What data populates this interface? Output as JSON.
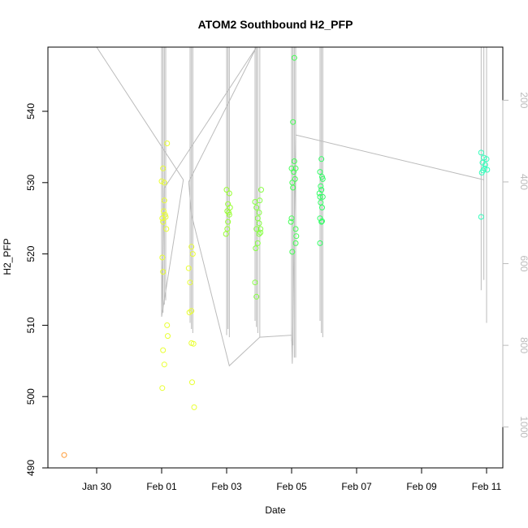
{
  "chart_data": {
    "type": "scatter",
    "title": "ATOM2 Southbound H2_PFP",
    "xlabel": "Date",
    "ylabel": "H2_PFP",
    "grid": false,
    "xlim": [
      "2016-01-28T12:00",
      "2016-02-11T12:00"
    ],
    "ylim": [
      490,
      549
    ],
    "x_ticks": [
      {
        "label": "Jan 30",
        "date": "2016-01-30"
      },
      {
        "label": "Feb 01",
        "date": "2016-02-01"
      },
      {
        "label": "Feb 03",
        "date": "2016-02-03"
      },
      {
        "label": "Feb 05",
        "date": "2016-02-05"
      },
      {
        "label": "Feb 07",
        "date": "2016-02-07"
      },
      {
        "label": "Feb 09",
        "date": "2016-02-09"
      },
      {
        "label": "Feb 11",
        "date": "2016-02-11"
      }
    ],
    "y_ticks": [
      490,
      500,
      510,
      520,
      530,
      540
    ],
    "secondary_axis": {
      "ticks": [
        200,
        400,
        600,
        800,
        1000
      ],
      "range": [
        70,
        1100
      ],
      "inverted": true,
      "color": "#bbbbbb"
    },
    "colors": {
      "jan29": "#ff9933",
      "feb01": "#e9ff33",
      "feb03": "#99ff33",
      "feb04": "#88ff44",
      "feb05": "#44ff55",
      "feb06": "#33ff66",
      "feb10": "#33ffbb",
      "profile_line": "#bbbbbb"
    },
    "series": [
      {
        "color": "#ff9933",
        "points": [
          [
            "2016-01-29T00:00",
            491.8
          ]
        ]
      },
      {
        "color": "#e9ff33",
        "points": [
          [
            "2016-02-01T00:00",
            530.2
          ],
          [
            "2016-02-01T01:00",
            532.0
          ],
          [
            "2016-02-01T02:00",
            527.5
          ],
          [
            "2016-02-01T01:30",
            526.0
          ],
          [
            "2016-02-01T02:30",
            525.5
          ],
          [
            "2016-02-01T00:30",
            525.0
          ],
          [
            "2016-02-01T03:00",
            525.2
          ],
          [
            "2016-02-01T01:00",
            524.5
          ],
          [
            "2016-02-01T03:30",
            523.5
          ],
          [
            "2016-02-01T02:00",
            530.0
          ],
          [
            "2016-02-01T04:00",
            535.5
          ],
          [
            "2016-02-01T00:30",
            519.5
          ],
          [
            "2016-02-01T01:00",
            517.5
          ],
          [
            "2016-02-01T04:00",
            510.0
          ],
          [
            "2016-02-01T04:30",
            508.5
          ],
          [
            "2016-02-01T01:00",
            506.5
          ],
          [
            "2016-02-01T02:00",
            504.5
          ],
          [
            "2016-02-01T00:30",
            501.2
          ],
          [
            "2016-02-01T20:00",
            518.0
          ],
          [
            "2016-02-01T22:00",
            521.0
          ],
          [
            "2016-02-01T23:00",
            520.0
          ],
          [
            "2016-02-01T21:00",
            516.0
          ],
          [
            "2016-02-01T22:00",
            512.0
          ],
          [
            "2016-02-01T20:30",
            511.8
          ],
          [
            "2016-02-01T22:00",
            507.5
          ],
          [
            "2016-02-01T23:30",
            507.4
          ],
          [
            "2016-02-01T22:30",
            502.0
          ],
          [
            "2016-02-02T00:00",
            498.5
          ]
        ]
      },
      {
        "color": "#99ff33",
        "points": [
          [
            "2016-02-03T00:00",
            529.0
          ],
          [
            "2016-02-03T02:00",
            528.5
          ],
          [
            "2016-02-03T01:00",
            527.0
          ],
          [
            "2016-02-03T00:30",
            526.0
          ],
          [
            "2016-02-03T02:00",
            525.5
          ],
          [
            "2016-02-03T01:00",
            524.5
          ],
          [
            "2016-02-03T02:30",
            526.5
          ],
          [
            "2016-02-03T00:30",
            523.5
          ],
          [
            "2016-02-02T23:30",
            522.8
          ],
          [
            "2016-02-03T01:30",
            525.8
          ]
        ]
      },
      {
        "color": "#88ff44",
        "points": [
          [
            "2016-02-03T21:00",
            527.3
          ],
          [
            "2016-02-03T22:00",
            526.5
          ],
          [
            "2016-02-03T23:00",
            525.0
          ],
          [
            "2016-02-04T00:00",
            524.3
          ],
          [
            "2016-02-04T01:00",
            523.5
          ],
          [
            "2016-02-03T22:00",
            523.5
          ],
          [
            "2016-02-04T00:00",
            522.8
          ],
          [
            "2016-02-04T01:30",
            529.0
          ],
          [
            "2016-02-04T00:30",
            527.5
          ],
          [
            "2016-02-03T23:00",
            521.5
          ],
          [
            "2016-02-03T21:30",
            520.8
          ],
          [
            "2016-02-03T21:00",
            516.0
          ],
          [
            "2016-02-03T22:00",
            514.0
          ],
          [
            "2016-02-04T00:00",
            525.8
          ],
          [
            "2016-02-04T01:00",
            523.0
          ]
        ]
      },
      {
        "color": "#44ff55",
        "points": [
          [
            "2016-02-05T02:00",
            547.5
          ],
          [
            "2016-02-05T01:00",
            538.5
          ],
          [
            "2016-02-05T02:00",
            533.0
          ],
          [
            "2016-02-05T00:00",
            532.0
          ],
          [
            "2016-02-05T03:00",
            532.0
          ],
          [
            "2016-02-05T01:30",
            531.5
          ],
          [
            "2016-02-05T00:30",
            530.0
          ],
          [
            "2016-02-05T02:30",
            530.5
          ],
          [
            "2016-02-05T01:00",
            529.3
          ],
          [
            "2016-02-05T00:00",
            525.0
          ],
          [
            "2016-02-04T23:30",
            524.5
          ],
          [
            "2016-02-05T03:00",
            523.5
          ],
          [
            "2016-02-05T03:30",
            522.5
          ],
          [
            "2016-02-05T03:00",
            521.5
          ],
          [
            "2016-02-05T00:30",
            520.3
          ]
        ]
      },
      {
        "color": "#33ff66",
        "points": [
          [
            "2016-02-05T22:00",
            533.3
          ],
          [
            "2016-02-05T21:00",
            531.5
          ],
          [
            "2016-02-05T22:30",
            530.8
          ],
          [
            "2016-02-05T23:00",
            530.5
          ],
          [
            "2016-02-05T21:30",
            529.5
          ],
          [
            "2016-02-05T22:00",
            529.0
          ],
          [
            "2016-02-05T20:30",
            528.5
          ],
          [
            "2016-02-05T21:00",
            528.0
          ],
          [
            "2016-02-05T23:00",
            528.0
          ],
          [
            "2016-02-05T21:30",
            527.2
          ],
          [
            "2016-02-05T22:30",
            526.5
          ],
          [
            "2016-02-05T21:00",
            525.0
          ],
          [
            "2016-02-05T22:00",
            524.5
          ],
          [
            "2016-02-05T22:30",
            524.6
          ],
          [
            "2016-02-05T21:00",
            521.5
          ]
        ]
      },
      {
        "color": "#33ffbb",
        "points": [
          [
            "2016-02-10T20:00",
            534.2
          ],
          [
            "2016-02-10T22:00",
            533.5
          ],
          [
            "2016-02-10T23:00",
            532.5
          ],
          [
            "2016-02-11T00:00",
            533.3
          ],
          [
            "2016-02-10T21:00",
            532.8
          ],
          [
            "2016-02-10T22:30",
            532.0
          ],
          [
            "2016-02-11T00:30",
            531.8
          ],
          [
            "2016-02-10T20:30",
            531.4
          ],
          [
            "2016-02-10T21:30",
            531.7
          ],
          [
            "2016-02-10T20:00",
            525.2
          ]
        ]
      }
    ],
    "profile_spikes": [
      {
        "x": "2016-02-01T00:00",
        "y2": [
          70,
          730
        ]
      },
      {
        "x": "2016-02-01T01:00",
        "y2": [
          70,
          720
        ]
      },
      {
        "x": "2016-02-01T02:00",
        "y2": [
          70,
          700
        ]
      },
      {
        "x": "2016-02-01T03:00",
        "y2": [
          70,
          690
        ]
      },
      {
        "x": "2016-02-01T21:00",
        "y2": [
          70,
          745
        ]
      },
      {
        "x": "2016-02-01T22:00",
        "y2": [
          70,
          760
        ]
      },
      {
        "x": "2016-02-01T23:00",
        "y2": [
          70,
          770
        ]
      },
      {
        "x": "2016-02-03T00:00",
        "y2": [
          70,
          775
        ]
      },
      {
        "x": "2016-02-03T01:00",
        "y2": [
          70,
          760
        ]
      },
      {
        "x": "2016-02-03T02:00",
        "y2": [
          70,
          780
        ]
      },
      {
        "x": "2016-02-03T21:00",
        "y2": [
          70,
          740
        ]
      },
      {
        "x": "2016-02-03T22:00",
        "y2": [
          70,
          755
        ]
      },
      {
        "x": "2016-02-03T23:00",
        "y2": [
          70,
          770
        ]
      },
      {
        "x": "2016-02-04T00:30",
        "y2": [
          70,
          780
        ]
      },
      {
        "x": "2016-02-05T00:00",
        "y2": [
          70,
          790
        ]
      },
      {
        "x": "2016-02-05T01:00",
        "y2": [
          70,
          800
        ]
      },
      {
        "x": "2016-02-05T02:00",
        "y2": [
          70,
          830
        ]
      },
      {
        "x": "2016-02-05T03:00",
        "y2": [
          70,
          830
        ]
      },
      {
        "x": "2016-02-05T21:00",
        "y2": [
          70,
          740
        ]
      },
      {
        "x": "2016-02-05T22:00",
        "y2": [
          70,
          770
        ]
      },
      {
        "x": "2016-02-05T23:00",
        "y2": [
          70,
          780
        ]
      },
      {
        "x": "2016-02-10T20:00",
        "y2": [
          70,
          665
        ]
      },
      {
        "x": "2016-02-10T22:00",
        "y2": [
          70,
          640
        ]
      },
      {
        "x": "2016-02-11T00:00",
        "y2": [
          70,
          745
        ]
      }
    ],
    "profile_path": [
      [
        "2016-01-30T00:00",
        70
      ],
      [
        "2016-02-01T16:00",
        395
      ],
      [
        "2016-02-01T00:00",
        730
      ],
      [
        "2016-02-01T02:00",
        415
      ],
      [
        "2016-02-03T22:00",
        70
      ],
      [
        "2016-02-01T20:00",
        400
      ],
      [
        "2016-02-01T22:00",
        480
      ],
      [
        "2016-02-03T02:00",
        850
      ],
      [
        "2016-02-04T00:30",
        780
      ],
      [
        "2016-02-05T00:00",
        775
      ],
      [
        "2016-02-05T00:30",
        845
      ],
      [
        "2016-02-05T03:00",
        285
      ],
      [
        "2016-02-10T22:00",
        395
      ]
    ]
  }
}
